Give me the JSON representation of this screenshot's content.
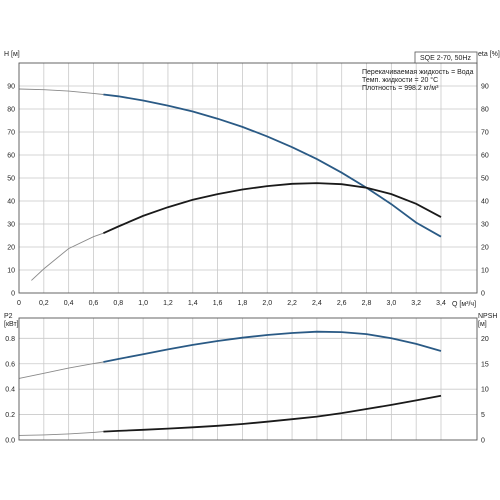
{
  "chart_data": [
    {
      "type": "line",
      "title": "SQE 2-70, 50Hz",
      "notes": [
        "Перекачиваемая жидкость = Вода",
        "Темп. жидкости = 20 °C",
        "Плотность = 998.2 кг/м³"
      ],
      "xlabel": "Q [м³/ч]",
      "ylabel_left": "H [м]",
      "ylabel_right": "eta [%]",
      "xlim": [
        0,
        3.5
      ],
      "ylim_left": [
        0,
        100
      ],
      "ylim_right": [
        0,
        100
      ],
      "x_ticks": [
        "0",
        "0,2",
        "0,4",
        "0,6",
        "0,8",
        "1,0",
        "1,2",
        "1,4",
        "1,6",
        "1,8",
        "2,0",
        "2,2",
        "2,4",
        "2,6",
        "2,8",
        "3,0",
        "3,2",
        "3,4"
      ],
      "y_left_ticks": [
        "0",
        "10",
        "20",
        "30",
        "40",
        "50",
        "60",
        "70",
        "80",
        "90"
      ],
      "y_right_ticks": [
        "0",
        "10",
        "20",
        "30",
        "40",
        "50",
        "60",
        "70",
        "80",
        "90"
      ],
      "grid": true,
      "series": [
        {
          "name": "H",
          "axis": "left",
          "color": "#2a5a85",
          "x": [
            0,
            0.2,
            0.4,
            0.6,
            0.68,
            0.8,
            1.0,
            1.2,
            1.4,
            1.6,
            1.8,
            2.0,
            2.2,
            2.4,
            2.6,
            2.8,
            3.0,
            3.2,
            3.4
          ],
          "y": [
            88.7,
            88.4,
            87.8,
            86.8,
            86.3,
            85.5,
            83.7,
            81.5,
            78.9,
            75.8,
            72.2,
            68.1,
            63.4,
            58.2,
            52.3,
            45.8,
            38.6,
            30.6,
            24.5
          ],
          "thin_until_x": 0.68
        },
        {
          "name": "eta",
          "axis": "right",
          "color": "#1a1a1a",
          "x": [
            0.1,
            0.2,
            0.4,
            0.6,
            0.68,
            0.8,
            1.0,
            1.2,
            1.4,
            1.6,
            1.8,
            2.0,
            2.2,
            2.4,
            2.6,
            2.8,
            3.0,
            3.2,
            3.4
          ],
          "y": [
            5.5,
            10.5,
            19.3,
            24.5,
            26.0,
            28.9,
            33.5,
            37.3,
            40.5,
            43.0,
            45.0,
            46.5,
            47.5,
            47.8,
            47.3,
            45.8,
            43.0,
            38.8,
            33.0
          ],
          "thin_until_x": 0.68
        }
      ]
    },
    {
      "type": "line",
      "xlabel": "",
      "ylabel_left": "P2 [кВт]",
      "ylabel_right": "NPSH [м]",
      "xlim": [
        0,
        3.5
      ],
      "ylim_left": [
        0,
        0.96
      ],
      "ylim_right": [
        0,
        24
      ],
      "y_left_ticks": [
        "0.0",
        "0.2",
        "0.4",
        "0.6",
        "0.8"
      ],
      "y_right_ticks": [
        "0",
        "5",
        "10",
        "15",
        "20"
      ],
      "grid": true,
      "series": [
        {
          "name": "P2",
          "axis": "left",
          "color": "#2a5a85",
          "x": [
            0,
            0.2,
            0.4,
            0.6,
            0.68,
            0.8,
            1.0,
            1.2,
            1.4,
            1.6,
            1.8,
            2.0,
            2.2,
            2.4,
            2.6,
            2.8,
            3.0,
            3.2,
            3.4
          ],
          "y": [
            0.485,
            0.525,
            0.566,
            0.601,
            0.614,
            0.637,
            0.675,
            0.713,
            0.748,
            0.779,
            0.805,
            0.826,
            0.842,
            0.852,
            0.849,
            0.833,
            0.8,
            0.756,
            0.7
          ],
          "thin_until_x": 0.68
        },
        {
          "name": "NPSH",
          "axis": "right",
          "color": "#1a1a1a",
          "x": [
            0,
            0.2,
            0.4,
            0.6,
            0.68,
            0.8,
            1.0,
            1.2,
            1.4,
            1.6,
            1.8,
            2.0,
            2.2,
            2.4,
            2.6,
            2.8,
            3.0,
            3.2,
            3.4
          ],
          "y": [
            0.9,
            1.0,
            1.2,
            1.5,
            1.65,
            1.8,
            2.0,
            2.25,
            2.5,
            2.8,
            3.15,
            3.6,
            4.1,
            4.6,
            5.3,
            6.1,
            6.9,
            7.8,
            8.7
          ],
          "thin_until_x": 0.68
        }
      ]
    }
  ],
  "bottom_x_ticks": [
    "0",
    "0,2",
    "0,4",
    "0,6",
    "0,8",
    "1,0",
    "1,2",
    "1,4",
    "1,6",
    "1,8",
    "2,0",
    "2,2",
    "2,4",
    "2,6",
    "2,8",
    "3,0",
    "3,2",
    "3,4"
  ]
}
